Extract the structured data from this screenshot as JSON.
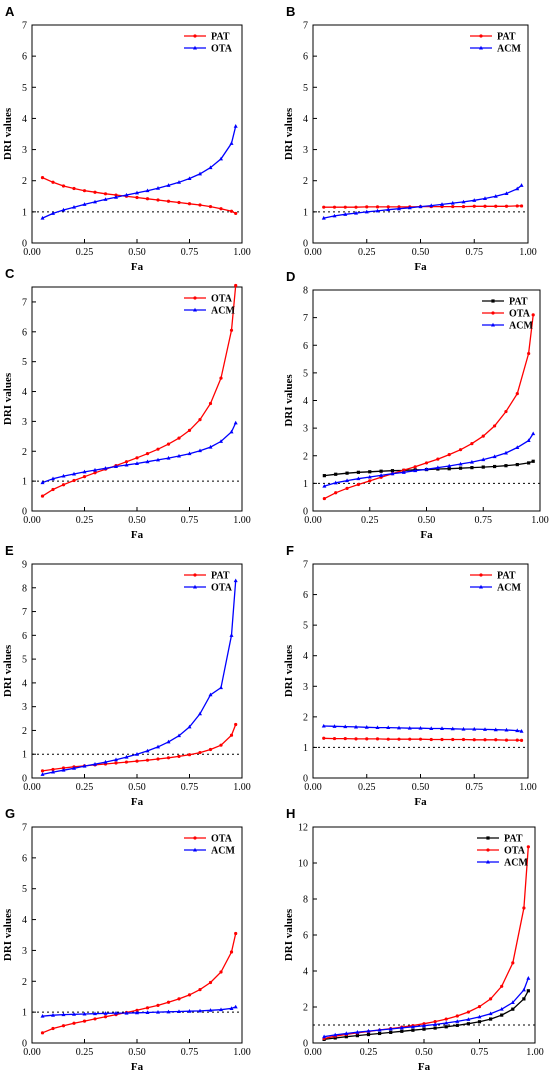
{
  "figure": {
    "background": "#ffffff"
  },
  "chart_data": [
    {
      "panel": "A",
      "type": "line",
      "xlabel": "Fa",
      "ylabel": "DRI values",
      "xlim": [
        0,
        1
      ],
      "ylim": [
        0,
        7
      ],
      "yticks": [
        0,
        1,
        2,
        3,
        4,
        5,
        6,
        7
      ],
      "xticks": [
        "0.00",
        "0.25",
        "0.50",
        "0.75",
        "1.00"
      ],
      "reference_line": 1,
      "legend_position": "top-right",
      "series": [
        {
          "name": "PAT",
          "color": "#ff0000",
          "marker": "circle",
          "x": [
            0.05,
            0.1,
            0.15,
            0.2,
            0.25,
            0.3,
            0.35,
            0.4,
            0.45,
            0.5,
            0.55,
            0.6,
            0.65,
            0.7,
            0.75,
            0.8,
            0.85,
            0.9,
            0.95,
            0.97
          ],
          "y": [
            2.1,
            1.95,
            1.83,
            1.75,
            1.68,
            1.63,
            1.58,
            1.54,
            1.5,
            1.46,
            1.42,
            1.38,
            1.34,
            1.3,
            1.26,
            1.22,
            1.17,
            1.1,
            1.02,
            0.95
          ]
        },
        {
          "name": "OTA",
          "color": "#0000ff",
          "marker": "triangle",
          "x": [
            0.05,
            0.1,
            0.15,
            0.2,
            0.25,
            0.3,
            0.35,
            0.4,
            0.45,
            0.5,
            0.55,
            0.6,
            0.65,
            0.7,
            0.75,
            0.8,
            0.85,
            0.9,
            0.95,
            0.97
          ],
          "y": [
            0.8,
            0.95,
            1.06,
            1.15,
            1.24,
            1.32,
            1.4,
            1.47,
            1.54,
            1.61,
            1.68,
            1.76,
            1.85,
            1.95,
            2.07,
            2.22,
            2.42,
            2.7,
            3.2,
            3.75
          ]
        }
      ]
    },
    {
      "panel": "B",
      "type": "line",
      "xlabel": "Fa",
      "ylabel": "DRI values",
      "xlim": [
        0,
        1
      ],
      "ylim": [
        0,
        7
      ],
      "yticks": [
        0,
        1,
        2,
        3,
        4,
        5,
        6,
        7
      ],
      "xticks": [
        "0.00",
        "0.25",
        "0.50",
        "0.75",
        "1.00"
      ],
      "reference_line": 1,
      "legend_position": "top-right",
      "series": [
        {
          "name": "PAT",
          "color": "#ff0000",
          "marker": "circle",
          "x": [
            0.05,
            0.1,
            0.15,
            0.2,
            0.25,
            0.3,
            0.35,
            0.4,
            0.45,
            0.5,
            0.55,
            0.6,
            0.65,
            0.7,
            0.75,
            0.8,
            0.85,
            0.9,
            0.95,
            0.97
          ],
          "y": [
            1.15,
            1.15,
            1.15,
            1.15,
            1.16,
            1.16,
            1.16,
            1.16,
            1.16,
            1.17,
            1.17,
            1.17,
            1.17,
            1.17,
            1.18,
            1.18,
            1.18,
            1.18,
            1.19,
            1.19
          ]
        },
        {
          "name": "ACM",
          "color": "#0000ff",
          "marker": "triangle",
          "x": [
            0.05,
            0.1,
            0.15,
            0.2,
            0.25,
            0.3,
            0.35,
            0.4,
            0.45,
            0.5,
            0.55,
            0.6,
            0.65,
            0.7,
            0.75,
            0.8,
            0.85,
            0.9,
            0.95,
            0.97
          ],
          "y": [
            0.8,
            0.87,
            0.92,
            0.96,
            1.0,
            1.03,
            1.07,
            1.1,
            1.13,
            1.17,
            1.2,
            1.24,
            1.28,
            1.32,
            1.37,
            1.43,
            1.5,
            1.59,
            1.74,
            1.85
          ]
        }
      ]
    },
    {
      "panel": "C",
      "type": "line",
      "xlabel": "Fa",
      "ylabel": "DRI values",
      "xlim": [
        0,
        1
      ],
      "ylim": [
        0,
        7.5
      ],
      "yticks": [
        0,
        1,
        2,
        3,
        4,
        5,
        6,
        7
      ],
      "xticks": [
        "0.00",
        "0.25",
        "0.50",
        "0.75",
        "1.00"
      ],
      "reference_line": 1,
      "legend_position": "top-right",
      "series": [
        {
          "name": "OTA",
          "color": "#ff0000",
          "marker": "circle",
          "x": [
            0.05,
            0.1,
            0.15,
            0.2,
            0.25,
            0.3,
            0.35,
            0.4,
            0.45,
            0.5,
            0.55,
            0.6,
            0.65,
            0.7,
            0.75,
            0.8,
            0.85,
            0.9,
            0.95,
            0.97
          ],
          "y": [
            0.5,
            0.72,
            0.88,
            1.02,
            1.15,
            1.28,
            1.4,
            1.52,
            1.65,
            1.78,
            1.92,
            2.07,
            2.24,
            2.44,
            2.7,
            3.06,
            3.6,
            4.45,
            6.05,
            7.55
          ]
        },
        {
          "name": "ACM",
          "color": "#0000ff",
          "marker": "triangle",
          "x": [
            0.05,
            0.1,
            0.15,
            0.2,
            0.25,
            0.3,
            0.35,
            0.4,
            0.45,
            0.5,
            0.55,
            0.6,
            0.65,
            0.7,
            0.75,
            0.8,
            0.85,
            0.9,
            0.95,
            0.97
          ],
          "y": [
            0.95,
            1.08,
            1.17,
            1.24,
            1.31,
            1.37,
            1.43,
            1.49,
            1.54,
            1.59,
            1.65,
            1.71,
            1.77,
            1.84,
            1.92,
            2.02,
            2.14,
            2.33,
            2.65,
            2.95
          ]
        }
      ]
    },
    {
      "panel": "D",
      "type": "line",
      "xlabel": "Fa",
      "ylabel": "DRI values",
      "xlim": [
        0,
        1
      ],
      "ylim": [
        0,
        8
      ],
      "yticks": [
        0,
        1,
        2,
        3,
        4,
        5,
        6,
        7,
        8
      ],
      "xticks": [
        "0.00",
        "0.25",
        "0.50",
        "0.75",
        "1.00"
      ],
      "reference_line": 1,
      "legend_position": "top-right",
      "series": [
        {
          "name": "PAT",
          "color": "#000000",
          "marker": "square",
          "x": [
            0.05,
            0.1,
            0.15,
            0.2,
            0.25,
            0.3,
            0.35,
            0.4,
            0.45,
            0.5,
            0.55,
            0.6,
            0.65,
            0.7,
            0.75,
            0.8,
            0.85,
            0.9,
            0.95,
            0.97
          ],
          "y": [
            1.28,
            1.33,
            1.37,
            1.4,
            1.42,
            1.44,
            1.46,
            1.47,
            1.49,
            1.5,
            1.52,
            1.53,
            1.55,
            1.57,
            1.59,
            1.61,
            1.64,
            1.68,
            1.74,
            1.8
          ]
        },
        {
          "name": "OTA",
          "color": "#ff0000",
          "marker": "circle",
          "x": [
            0.05,
            0.1,
            0.15,
            0.2,
            0.25,
            0.3,
            0.35,
            0.4,
            0.45,
            0.5,
            0.55,
            0.6,
            0.65,
            0.7,
            0.75,
            0.8,
            0.85,
            0.9,
            0.95,
            0.97
          ],
          "y": [
            0.45,
            0.66,
            0.82,
            0.96,
            1.09,
            1.22,
            1.35,
            1.48,
            1.6,
            1.74,
            1.88,
            2.04,
            2.22,
            2.44,
            2.71,
            3.08,
            3.6,
            4.25,
            5.7,
            7.1
          ]
        },
        {
          "name": "ACM",
          "color": "#0000ff",
          "marker": "triangle",
          "x": [
            0.05,
            0.1,
            0.15,
            0.2,
            0.25,
            0.3,
            0.35,
            0.4,
            0.45,
            0.5,
            0.55,
            0.6,
            0.65,
            0.7,
            0.75,
            0.8,
            0.85,
            0.9,
            0.95,
            0.97
          ],
          "y": [
            0.9,
            1.02,
            1.1,
            1.17,
            1.23,
            1.29,
            1.35,
            1.4,
            1.46,
            1.51,
            1.57,
            1.63,
            1.7,
            1.77,
            1.86,
            1.97,
            2.1,
            2.3,
            2.55,
            2.8
          ]
        }
      ]
    },
    {
      "panel": "E",
      "type": "line",
      "xlabel": "Fa",
      "ylabel": "DRI values",
      "xlim": [
        0,
        1
      ],
      "ylim": [
        0,
        9
      ],
      "yticks": [
        0,
        1,
        2,
        3,
        4,
        5,
        6,
        7,
        8,
        9
      ],
      "xticks": [
        "0.00",
        "0.25",
        "0.50",
        "0.75",
        "1.00"
      ],
      "reference_line": 1,
      "legend_position": "top-right",
      "series": [
        {
          "name": "PAT",
          "color": "#ff0000",
          "marker": "circle",
          "x": [
            0.05,
            0.1,
            0.15,
            0.2,
            0.25,
            0.3,
            0.35,
            0.4,
            0.45,
            0.5,
            0.55,
            0.6,
            0.65,
            0.7,
            0.75,
            0.8,
            0.85,
            0.9,
            0.95,
            0.97
          ],
          "y": [
            0.3,
            0.36,
            0.42,
            0.47,
            0.51,
            0.55,
            0.59,
            0.63,
            0.67,
            0.71,
            0.75,
            0.8,
            0.85,
            0.91,
            0.98,
            1.07,
            1.2,
            1.38,
            1.8,
            2.25
          ]
        },
        {
          "name": "OTA",
          "color": "#0000ff",
          "marker": "triangle",
          "x": [
            0.05,
            0.1,
            0.15,
            0.2,
            0.25,
            0.3,
            0.35,
            0.4,
            0.45,
            0.5,
            0.55,
            0.6,
            0.65,
            0.7,
            0.75,
            0.8,
            0.85,
            0.9,
            0.95,
            0.97
          ],
          "y": [
            0.15,
            0.25,
            0.33,
            0.41,
            0.5,
            0.58,
            0.67,
            0.77,
            0.88,
            1.0,
            1.14,
            1.31,
            1.52,
            1.78,
            2.15,
            2.7,
            3.5,
            3.8,
            6.0,
            8.3
          ]
        }
      ]
    },
    {
      "panel": "F",
      "type": "line",
      "xlabel": "Fa",
      "ylabel": "DRI values",
      "xlim": [
        0,
        1
      ],
      "ylim": [
        0,
        7
      ],
      "yticks": [
        0,
        1,
        2,
        3,
        4,
        5,
        6,
        7
      ],
      "xticks": [
        "0.00",
        "0.25",
        "0.50",
        "0.75",
        "1.00"
      ],
      "reference_line": 1,
      "legend_position": "top-right",
      "series": [
        {
          "name": "PAT",
          "color": "#ff0000",
          "marker": "circle",
          "x": [
            0.05,
            0.1,
            0.15,
            0.2,
            0.25,
            0.3,
            0.35,
            0.4,
            0.45,
            0.5,
            0.55,
            0.6,
            0.65,
            0.7,
            0.75,
            0.8,
            0.85,
            0.9,
            0.95,
            0.97
          ],
          "y": [
            1.3,
            1.29,
            1.29,
            1.28,
            1.28,
            1.28,
            1.27,
            1.27,
            1.27,
            1.27,
            1.26,
            1.26,
            1.26,
            1.26,
            1.25,
            1.25,
            1.25,
            1.24,
            1.24,
            1.23
          ]
        },
        {
          "name": "ACM",
          "color": "#0000ff",
          "marker": "triangle",
          "x": [
            0.05,
            0.1,
            0.15,
            0.2,
            0.25,
            0.3,
            0.35,
            0.4,
            0.45,
            0.5,
            0.55,
            0.6,
            0.65,
            0.7,
            0.75,
            0.8,
            0.85,
            0.9,
            0.95,
            0.97
          ],
          "y": [
            1.7,
            1.69,
            1.68,
            1.67,
            1.66,
            1.65,
            1.65,
            1.64,
            1.63,
            1.63,
            1.62,
            1.62,
            1.61,
            1.6,
            1.6,
            1.59,
            1.58,
            1.57,
            1.55,
            1.53
          ]
        }
      ]
    },
    {
      "panel": "G",
      "type": "line",
      "xlabel": "Fa",
      "ylabel": "DRI values",
      "xlim": [
        0,
        1
      ],
      "ylim": [
        0,
        7
      ],
      "yticks": [
        0,
        1,
        2,
        3,
        4,
        5,
        6,
        7
      ],
      "xticks": [
        "0.00",
        "0.25",
        "0.50",
        "0.75",
        "1.00"
      ],
      "reference_line": 1,
      "legend_position": "top-right",
      "series": [
        {
          "name": "OTA",
          "color": "#ff0000",
          "marker": "circle",
          "x": [
            0.05,
            0.1,
            0.15,
            0.2,
            0.25,
            0.3,
            0.35,
            0.4,
            0.45,
            0.5,
            0.55,
            0.6,
            0.65,
            0.7,
            0.75,
            0.8,
            0.85,
            0.9,
            0.95,
            0.97
          ],
          "y": [
            0.33,
            0.47,
            0.56,
            0.64,
            0.71,
            0.78,
            0.85,
            0.92,
            0.99,
            1.06,
            1.14,
            1.22,
            1.32,
            1.43,
            1.56,
            1.73,
            1.96,
            2.3,
            2.95,
            3.55
          ]
        },
        {
          "name": "ACM",
          "color": "#0000ff",
          "marker": "triangle",
          "x": [
            0.05,
            0.1,
            0.15,
            0.2,
            0.25,
            0.3,
            0.35,
            0.4,
            0.45,
            0.5,
            0.55,
            0.6,
            0.65,
            0.7,
            0.75,
            0.8,
            0.85,
            0.9,
            0.95,
            0.97
          ],
          "y": [
            0.87,
            0.9,
            0.92,
            0.93,
            0.94,
            0.95,
            0.96,
            0.97,
            0.97,
            0.98,
            0.99,
            1.0,
            1.01,
            1.02,
            1.03,
            1.04,
            1.06,
            1.08,
            1.12,
            1.17
          ]
        }
      ]
    },
    {
      "panel": "H",
      "type": "line",
      "xlabel": "Fa",
      "ylabel": "DRI values",
      "xlim": [
        0,
        1
      ],
      "ylim": [
        0,
        12
      ],
      "yticks": [
        0,
        2,
        4,
        6,
        8,
        10,
        12
      ],
      "xticks": [
        "0.00",
        "0.25",
        "0.50",
        "0.75",
        "1.00"
      ],
      "reference_line": 1,
      "legend_position": "top-right",
      "series": [
        {
          "name": "PAT",
          "color": "#000000",
          "marker": "square",
          "x": [
            0.05,
            0.1,
            0.15,
            0.2,
            0.25,
            0.3,
            0.35,
            0.4,
            0.45,
            0.5,
            0.55,
            0.6,
            0.65,
            0.7,
            0.75,
            0.8,
            0.85,
            0.9,
            0.95,
            0.97
          ],
          "y": [
            0.2,
            0.28,
            0.35,
            0.41,
            0.47,
            0.53,
            0.59,
            0.65,
            0.71,
            0.77,
            0.83,
            0.9,
            0.98,
            1.07,
            1.18,
            1.33,
            1.55,
            1.88,
            2.45,
            2.9
          ]
        },
        {
          "name": "OTA",
          "color": "#ff0000",
          "marker": "circle",
          "x": [
            0.05,
            0.1,
            0.15,
            0.2,
            0.25,
            0.3,
            0.35,
            0.4,
            0.45,
            0.5,
            0.55,
            0.6,
            0.65,
            0.7,
            0.75,
            0.8,
            0.85,
            0.9,
            0.95,
            0.97
          ],
          "y": [
            0.25,
            0.38,
            0.48,
            0.56,
            0.64,
            0.72,
            0.8,
            0.88,
            0.97,
            1.07,
            1.19,
            1.33,
            1.5,
            1.72,
            2.02,
            2.45,
            3.15,
            4.45,
            7.5,
            10.9
          ]
        },
        {
          "name": "ACM",
          "color": "#0000ff",
          "marker": "triangle",
          "x": [
            0.05,
            0.1,
            0.15,
            0.2,
            0.25,
            0.3,
            0.35,
            0.4,
            0.45,
            0.5,
            0.55,
            0.6,
            0.65,
            0.7,
            0.75,
            0.8,
            0.85,
            0.9,
            0.95,
            0.97
          ],
          "y": [
            0.35,
            0.45,
            0.53,
            0.6,
            0.66,
            0.72,
            0.78,
            0.84,
            0.9,
            0.96,
            1.03,
            1.11,
            1.2,
            1.31,
            1.45,
            1.63,
            1.88,
            2.25,
            2.95,
            3.6
          ]
        }
      ]
    }
  ]
}
